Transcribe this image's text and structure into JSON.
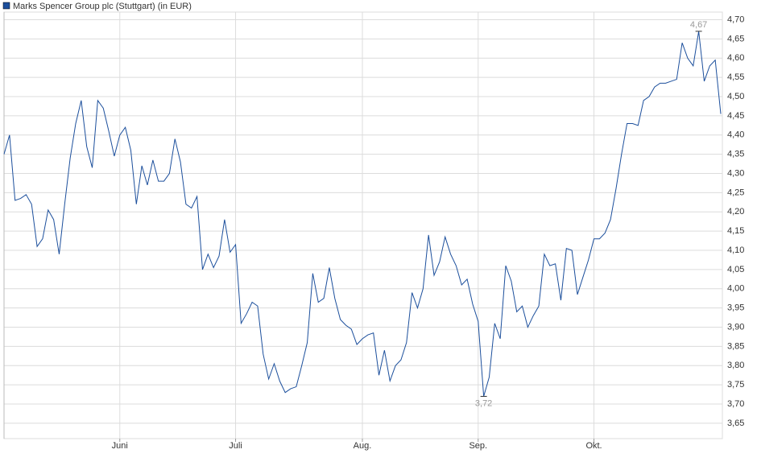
{
  "chart_data": {
    "type": "line",
    "series": [
      {
        "name": "Marks Spencer Group plc (Stuttgart) (in EUR)",
        "color": "#1c4f9c",
        "values": [
          4.35,
          4.4,
          4.23,
          4.235,
          4.245,
          4.22,
          4.11,
          4.13,
          4.205,
          4.18,
          4.09,
          4.22,
          4.34,
          4.43,
          4.49,
          4.37,
          4.315,
          4.49,
          4.47,
          4.41,
          4.345,
          4.4,
          4.42,
          4.36,
          4.22,
          4.32,
          4.27,
          4.335,
          4.28,
          4.28,
          4.3,
          4.39,
          4.33,
          4.22,
          4.21,
          4.24,
          4.05,
          4.09,
          4.055,
          4.085,
          4.18,
          4.095,
          4.115,
          3.91,
          3.935,
          3.965,
          3.955,
          3.83,
          3.765,
          3.805,
          3.76,
          3.73,
          3.74,
          3.745,
          3.8,
          3.86,
          4.04,
          3.965,
          3.975,
          4.055,
          3.975,
          3.92,
          3.905,
          3.895,
          3.855,
          3.87,
          3.88,
          3.885,
          3.775,
          3.84,
          3.76,
          3.8,
          3.815,
          3.86,
          3.99,
          3.95,
          4.0,
          4.14,
          4.035,
          4.07,
          4.135,
          4.09,
          4.06,
          4.01,
          4.025,
          3.96,
          3.915,
          3.72,
          3.77,
          3.91,
          3.87,
          4.06,
          4.02,
          3.94,
          3.955,
          3.9,
          3.93,
          3.955,
          4.09,
          4.06,
          4.065,
          3.97,
          4.105,
          4.1,
          3.985,
          4.03,
          4.075,
          4.13,
          4.13,
          4.145,
          4.18,
          4.26,
          4.35,
          4.43,
          4.43,
          4.425,
          4.49,
          4.5,
          4.525,
          4.535,
          4.535,
          4.54,
          4.545,
          4.64,
          4.6,
          4.58,
          4.67,
          4.54,
          4.58,
          4.595,
          4.455
        ]
      }
    ],
    "annotations": [
      {
        "text": "4,67",
        "value": 4.67
      },
      {
        "text": "3,72",
        "value": 3.72
      }
    ],
    "xlim": [
      0,
      130
    ],
    "xticks": [
      {
        "value": 21,
        "label": "Juni"
      },
      {
        "value": 42,
        "label": "Juli"
      },
      {
        "value": 65,
        "label": "Aug."
      },
      {
        "value": 86,
        "label": "Sep."
      },
      {
        "value": 107,
        "label": "Okt."
      }
    ],
    "ylim": [
      3.61,
      4.72
    ],
    "yticks": [
      {
        "value": 3.65,
        "label": "3,65"
      },
      {
        "value": 3.7,
        "label": "3,70"
      },
      {
        "value": 3.75,
        "label": "3,75"
      },
      {
        "value": 3.8,
        "label": "3,80"
      },
      {
        "value": 3.85,
        "label": "3,85"
      },
      {
        "value": 3.9,
        "label": "3,90"
      },
      {
        "value": 3.95,
        "label": "3,95"
      },
      {
        "value": 4.0,
        "label": "4,00"
      },
      {
        "value": 4.05,
        "label": "4,05"
      },
      {
        "value": 4.1,
        "label": "4,10"
      },
      {
        "value": 4.15,
        "label": "4,15"
      },
      {
        "value": 4.2,
        "label": "4,20"
      },
      {
        "value": 4.25,
        "label": "4,25"
      },
      {
        "value": 4.3,
        "label": "4,30"
      },
      {
        "value": 4.35,
        "label": "4,35"
      },
      {
        "value": 4.4,
        "label": "4,40"
      },
      {
        "value": 4.45,
        "label": "4,45"
      },
      {
        "value": 4.5,
        "label": "4,50"
      },
      {
        "value": 4.55,
        "label": "4,55"
      },
      {
        "value": 4.6,
        "label": "4,60"
      },
      {
        "value": 4.65,
        "label": "4,65"
      },
      {
        "value": 4.7,
        "label": "4,70"
      }
    ],
    "grid": true
  }
}
